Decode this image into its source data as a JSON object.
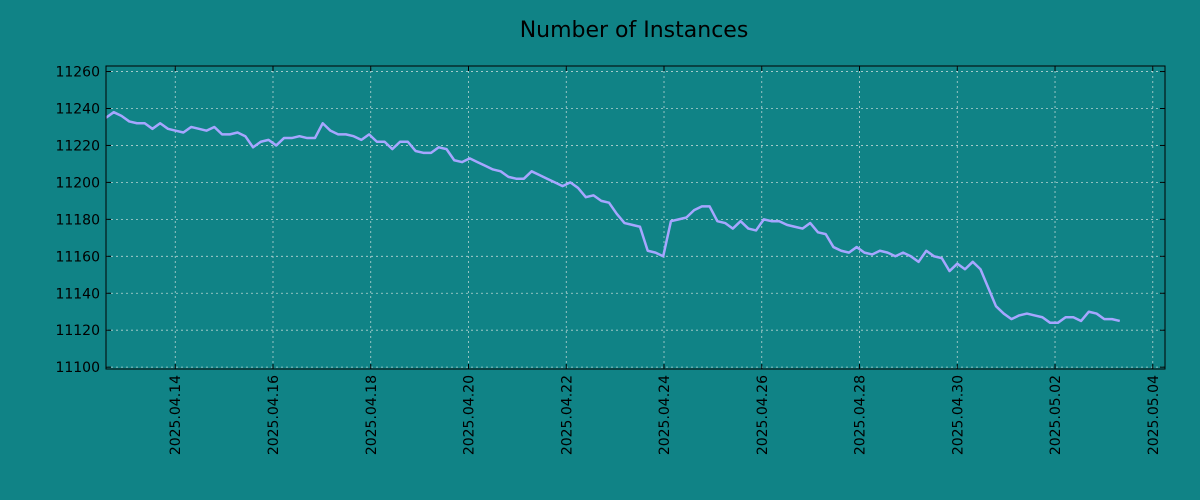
{
  "chart_data": {
    "type": "line",
    "title": "Number of Instances",
    "xlabel": "",
    "ylabel": "",
    "x_start": "2025-04-12T14:00",
    "x_step_hours": 3.8,
    "xlim": [
      "2025-04-12T14:00",
      "2025-05-04T06:00"
    ],
    "ylim": [
      11099,
      11263
    ],
    "yticks": [
      11100,
      11120,
      11140,
      11160,
      11180,
      11200,
      11220,
      11240,
      11260
    ],
    "xticks": [
      "2025.04.14",
      "2025.04.16",
      "2025.04.18",
      "2025.04.20",
      "2025.04.22",
      "2025.04.24",
      "2025.04.26",
      "2025.04.28",
      "2025.04.30",
      "2025.05.02",
      "2025.05.04"
    ],
    "grid": true,
    "colors": {
      "background": "#108386",
      "line": "#a6a6ff",
      "grid": "#b8d4d4",
      "axis": "#000000"
    },
    "series": [
      {
        "values": [
          11235,
          11238,
          11236,
          11233,
          11232,
          11232,
          11229,
          11232,
          11229,
          11228,
          11227,
          11230,
          11229,
          11228,
          11230,
          11226,
          11226,
          11227,
          11225,
          11219,
          11222,
          11223,
          11220,
          11224,
          11224,
          11225,
          11224,
          11224,
          11232,
          11228,
          11226,
          11226,
          11225,
          11223,
          11226,
          11222,
          11222,
          11218,
          11222,
          11222,
          11217,
          11216,
          11216,
          11219,
          11218,
          11212,
          11211,
          11213,
          11211,
          11209,
          11207,
          11206,
          11203,
          11202,
          11202,
          11206,
          11204,
          11202,
          11200,
          11198,
          11200,
          11197,
          11192,
          11193,
          11190,
          11189,
          11183,
          11178,
          11177,
          11176,
          11163,
          11162,
          11160,
          11179,
          11180,
          11181,
          11185,
          11187,
          11187,
          11179,
          11178,
          11175,
          11179,
          11175,
          11174,
          11180,
          11179,
          11179,
          11177,
          11176,
          11175,
          11178,
          11173,
          11172,
          11165,
          11163,
          11162,
          11165,
          11162,
          11161,
          11163,
          11162,
          11160,
          11162,
          11160,
          11157,
          11163,
          11160,
          11159,
          11152,
          11156,
          11153,
          11157,
          11153,
          11143,
          11133,
          11129,
          11126,
          11128,
          11129,
          11128,
          11127,
          11124,
          11124,
          11127,
          11127,
          11125,
          11130,
          11129,
          11126,
          11126,
          11125
        ]
      }
    ]
  }
}
